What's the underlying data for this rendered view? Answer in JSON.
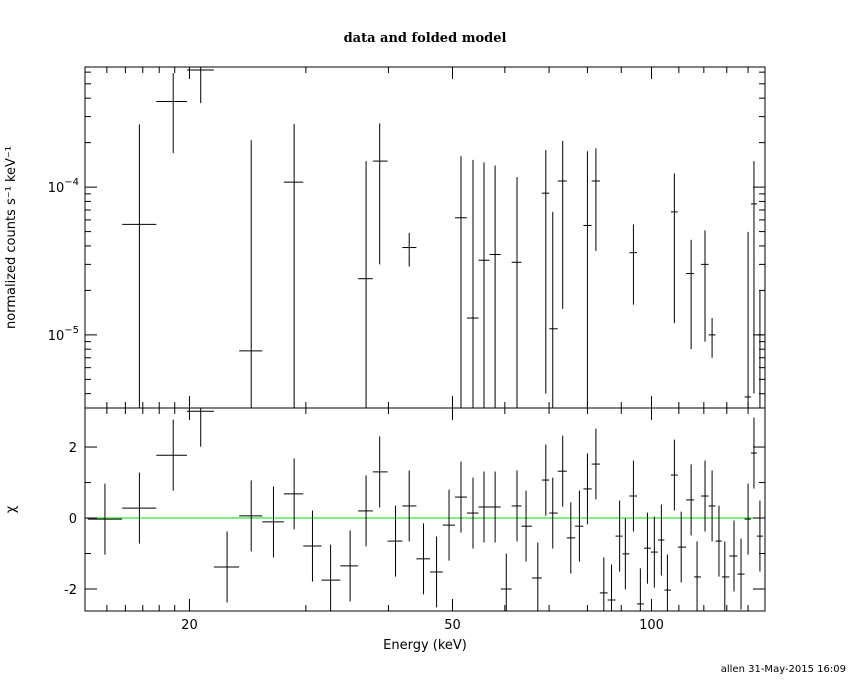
{
  "title": "data and folded model",
  "footer": "allen 31-May-2015 16:09",
  "chart_data": [
    {
      "type": "errorbar",
      "ylabel": "normalized counts s⁻¹ keV⁻¹",
      "log_x": true,
      "log_y": true,
      "color": "#000000",
      "xlim": [
        13.9,
        148.5
      ],
      "ylim": [
        3.2e-06,
        0.00065
      ],
      "yticks": [
        {
          "value": 0.0001,
          "label": "10",
          "exponent": "−4"
        },
        {
          "value": 1e-05,
          "label": "10",
          "exponent": "−5"
        }
      ],
      "yminor": [
        4e-06,
        5e-06,
        6e-06,
        7e-06,
        8e-06,
        9e-06,
        2e-05,
        3e-05,
        4e-05,
        5e-05,
        6e-05,
        7e-05,
        8e-05,
        9e-05,
        0.0002,
        0.0003,
        0.0004,
        0.0005,
        0.0006
      ],
      "xticks": [
        20,
        50,
        100
      ],
      "xminor": [
        15,
        16,
        17,
        18,
        19,
        30,
        40,
        60,
        70,
        80,
        90,
        110,
        120,
        130,
        140
      ],
      "x": [
        14.9,
        16.8,
        18.9,
        20.8,
        22.8,
        24.8,
        26.8,
        28.8,
        30.7,
        32.7,
        35.0,
        37.0,
        38.8,
        41.0,
        43.0,
        45.2,
        47.3,
        49.4,
        51.5,
        53.7,
        55.8,
        58.0,
        60.3,
        62.6,
        64.6,
        67.3,
        69.2,
        70.9,
        73.4,
        75.5,
        77.8,
        80.0,
        82.4,
        84.7,
        87.0,
        89.5,
        91.3,
        93.9,
        96.2,
        98.6,
        101,
        103.5,
        105.7,
        108.3,
        110.9,
        114.8,
        117.2,
        120.5,
        123.5,
        126.5,
        129.1,
        133.3,
        136.6,
        140.0,
        142.9,
        145.9
      ],
      "values": [
        null,
        5.6e-05,
        0.00038,
        0.00062,
        null,
        7.8e-06,
        null,
        0.000108,
        null,
        null,
        null,
        2.4e-05,
        0.00015,
        null,
        3.9e-05,
        null,
        null,
        null,
        6.2e-05,
        1.3e-05,
        3.2e-05,
        3.5e-05,
        null,
        3.1e-05,
        null,
        null,
        9.1e-05,
        1.1e-05,
        0.00011,
        null,
        null,
        5.5e-05,
        0.00011,
        null,
        null,
        null,
        null,
        3.6e-05,
        null,
        null,
        null,
        null,
        null,
        6.8e-05,
        null,
        2.6e-05,
        null,
        3e-05,
        1e-05,
        null,
        null,
        null,
        null,
        3.8e-06,
        7.7e-05,
        1e-05
      ],
      "errors": [
        null,
        0.00021,
        0.00021,
        0.00025,
        null,
        0.0002,
        null,
        0.00016,
        null,
        null,
        null,
        0.000126,
        0.00012,
        null,
        1e-05,
        null,
        null,
        null,
        0.0001,
        0.00014,
        0.000115,
        0.000105,
        null,
        8.6e-05,
        null,
        null,
        8.7e-05,
        5.7e-05,
        9.5e-05,
        null,
        null,
        0.00012,
        7.3e-05,
        null,
        null,
        null,
        null,
        2e-05,
        null,
        null,
        null,
        null,
        null,
        5.6e-05,
        null,
        1.8e-05,
        null,
        2.1e-05,
        3e-06,
        null,
        null,
        null,
        null,
        4.6e-05,
        7.3e-05,
        1e-05
      ]
    },
    {
      "type": "errorbar",
      "ylabel": "χ",
      "xlabel": "Energy (keV)",
      "log_x": true,
      "color": "#000000",
      "reference_line": 0,
      "reference_color": "#00dd00",
      "xlim": [
        13.9,
        148.5
      ],
      "ylim": [
        -2.62,
        3.1
      ],
      "yticks": [
        2,
        0,
        -2
      ],
      "yminor": [
        -1,
        1
      ],
      "xticks": [
        {
          "value": 20,
          "label": "20"
        },
        {
          "value": 50,
          "label": "50"
        },
        {
          "value": 100,
          "label": "100"
        }
      ],
      "xminor": [
        15,
        16,
        17,
        18,
        19,
        30,
        40,
        60,
        70,
        80,
        90,
        110,
        120,
        130,
        140
      ],
      "x": [
        14.9,
        16.8,
        18.9,
        20.8,
        22.8,
        24.8,
        26.8,
        28.8,
        30.7,
        32.7,
        35.0,
        37.0,
        38.8,
        41.0,
        43.0,
        45.2,
        47.3,
        49.4,
        51.5,
        53.7,
        55.8,
        58.0,
        60.3,
        62.6,
        64.6,
        67.3,
        69.2,
        70.9,
        73.4,
        75.5,
        77.8,
        80.0,
        82.4,
        84.7,
        87.0,
        89.5,
        91.3,
        93.9,
        96.2,
        98.6,
        101,
        103.5,
        105.7,
        108.3,
        110.9,
        114.8,
        117.2,
        120.5,
        123.5,
        126.5,
        129.1,
        133.3,
        136.6,
        140.0,
        142.9,
        145.9
      ],
      "values": [
        -0.03,
        0.28,
        1.77,
        3.01,
        -1.38,
        0.06,
        -0.11,
        0.68,
        -0.79,
        -1.75,
        -1.35,
        0.2,
        1.3,
        -0.65,
        0.34,
        -1.15,
        -1.52,
        -0.2,
        0.59,
        0.14,
        0.31,
        0.31,
        -2.0,
        0.34,
        -0.23,
        -1.69,
        1.07,
        0.14,
        1.32,
        -0.56,
        -0.23,
        0.82,
        1.52,
        -2.11,
        -2.31,
        -0.51,
        -1.01,
        0.62,
        -2.42,
        -0.85,
        -0.96,
        -0.62,
        -2.03,
        1.21,
        -0.82,
        0.51,
        -1.66,
        0.62,
        0.34,
        -0.65,
        -1.66,
        -1.07,
        -1.58,
        -0.03,
        1.83,
        -0.51
      ],
      "errors": [
        1,
        1,
        1,
        1,
        1,
        1,
        1,
        1,
        1,
        1,
        1,
        1,
        1,
        1,
        1,
        1,
        1,
        1,
        1,
        1,
        1,
        1,
        1,
        1,
        1,
        1,
        1,
        1,
        1,
        1,
        1,
        1,
        1,
        1,
        1,
        1,
        1,
        1,
        1,
        1,
        1,
        1,
        1,
        1,
        1,
        1,
        1,
        1,
        1,
        1,
        1,
        1,
        1,
        1,
        1,
        1
      ]
    }
  ]
}
